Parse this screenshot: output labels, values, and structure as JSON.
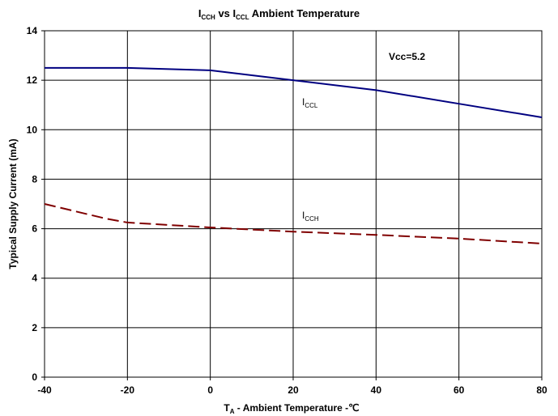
{
  "chart_data": {
    "type": "line",
    "title": {
      "prefix": "I",
      "sub1": "CCH",
      "middle": " vs I",
      "sub2": "CCL",
      "suffix": " Ambient Temperature"
    },
    "xlabel": {
      "prefix": "T",
      "sub": "A",
      "suffix": " - Ambient Temperature -℃"
    },
    "ylabel": "Typical Supply Current  (mA)",
    "xlim": [
      -40,
      80
    ],
    "ylim": [
      0,
      14
    ],
    "x_ticks": [
      "-40",
      "-20",
      "0",
      "20",
      "40",
      "60",
      "80"
    ],
    "y_ticks": [
      "0",
      "2",
      "4",
      "6",
      "8",
      "10",
      "12",
      "14"
    ],
    "grid": true,
    "legend": "none",
    "annotations": {
      "vcc": "Vcc=5.2",
      "iccl": {
        "main": "I",
        "sub": "CCL"
      },
      "icch": {
        "main": "I",
        "sub": "CCH"
      }
    },
    "series": [
      {
        "label": "ICCL",
        "color": "#000080",
        "style": "solid",
        "x": [
          -40,
          -20,
          0,
          20,
          40,
          60,
          80
        ],
        "y": [
          12.5,
          12.5,
          12.4,
          12.0,
          11.6,
          11.05,
          10.5
        ]
      },
      {
        "label": "ICCH",
        "color": "#800000",
        "style": "dashed",
        "x": [
          -40,
          -25,
          -20,
          0,
          20,
          40,
          60,
          80
        ],
        "y": [
          7.0,
          6.4,
          6.25,
          6.05,
          5.88,
          5.75,
          5.6,
          5.4
        ]
      }
    ]
  }
}
